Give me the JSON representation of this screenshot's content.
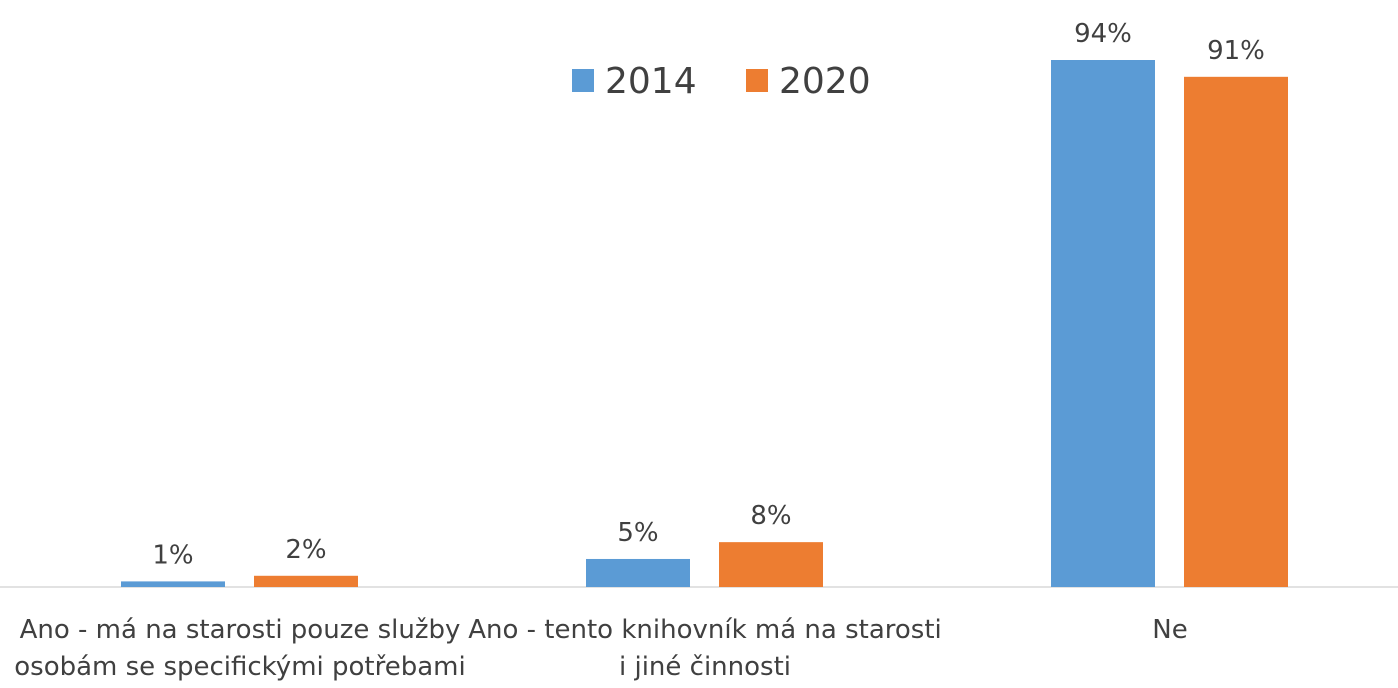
{
  "chart_data": {
    "type": "bar",
    "categories": [
      "Ano - má na starosti pouze služby osobám se specifickými potřebami",
      "Ano - tento knihovník má na starosti i jiné činnosti",
      "Ne"
    ],
    "series": [
      {
        "name": "2014",
        "color": "#5b9bd5",
        "values": [
          1,
          5,
          94
        ],
        "value_labels": [
          "1%",
          "5%",
          "94%"
        ]
      },
      {
        "name": "2020",
        "color": "#ed7d31",
        "values": [
          2,
          8,
          91
        ],
        "value_labels": [
          "2%",
          "8%",
          "91%"
        ]
      }
    ],
    "legend": "top"
  }
}
